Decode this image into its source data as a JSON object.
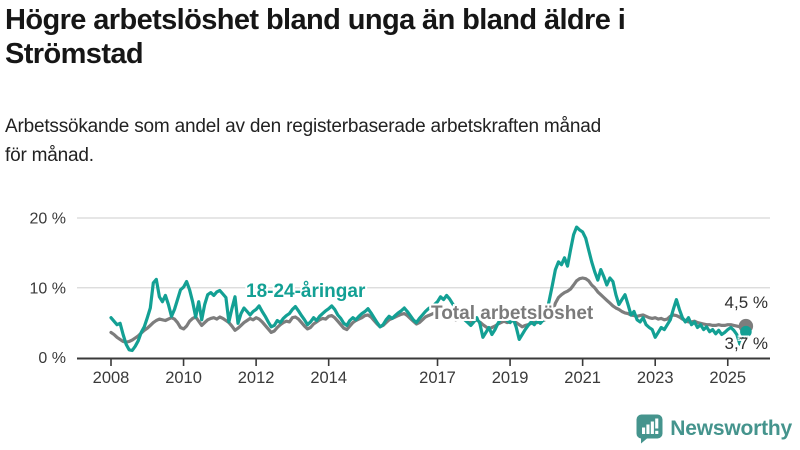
{
  "header": {
    "title": "Högre arbetslöshet bland unga än bland äldre i Strömstad",
    "subtitle_lines": [
      "Arbetssökande som andel av den registerbaserade arbetskraften månad",
      "för månad."
    ]
  },
  "footer": {
    "brand": "Newsworthy"
  },
  "colors": {
    "young": "#13a094",
    "total": "#7d7d7d",
    "axis": "#3a3a3a",
    "grid": "#d8d8d8",
    "value_label": "#2e2e2e",
    "brand": "#45948d",
    "title_text": "#161616"
  },
  "chart_data": {
    "type": "line",
    "title": "Högre arbetslöshet bland unga än bland äldre i Strömstad",
    "subtitle": "Arbetssökande som andel av den registerbaserade arbetskraften månad för månad.",
    "x_unit": "month",
    "x_start_year": 2008.0,
    "x_end_year": 2025.5,
    "x_step_years": 0.0833333,
    "ylim": [
      0,
      20
    ],
    "grid": "horizontal",
    "legend_position": "inline-labels",
    "y_axis": [
      {
        "value": 0,
        "label": "0 %"
      },
      {
        "value": 10,
        "label": "10 %"
      },
      {
        "value": 20,
        "label": "20 %"
      }
    ],
    "x_axis": [
      {
        "year": 2008,
        "label": "2008"
      },
      {
        "year": 2010,
        "label": "2010"
      },
      {
        "year": 2012,
        "label": "2012"
      },
      {
        "year": 2014,
        "label": "2014"
      },
      {
        "year": 2017,
        "label": "2017"
      },
      {
        "year": 2019,
        "label": "2019"
      },
      {
        "year": 2021,
        "label": "2021"
      },
      {
        "year": 2023,
        "label": "2023"
      },
      {
        "year": 2025,
        "label": "2025"
      }
    ],
    "series": [
      {
        "id": "total",
        "name": "Total arbetslöshet",
        "color": "#7d7d7d",
        "end_label": "4,5 %",
        "end_value": 4.5,
        "values": [
          3.6,
          3.3,
          2.9,
          2.6,
          2.3,
          2.2,
          2.3,
          2.5,
          2.8,
          3.1,
          3.5,
          3.9,
          4.2,
          4.6,
          5.0,
          5.3,
          5.5,
          5.4,
          5.3,
          5.5,
          5.7,
          5.5,
          5.0,
          4.3,
          4.1,
          4.5,
          5.2,
          5.6,
          5.8,
          5.2,
          4.6,
          5.0,
          5.4,
          5.6,
          5.7,
          5.5,
          5.8,
          5.6,
          5.3,
          5.0,
          4.5,
          3.9,
          4.2,
          4.6,
          5.0,
          5.3,
          5.6,
          5.4,
          5.7,
          5.5,
          5.1,
          4.6,
          4.1,
          3.6,
          3.8,
          4.3,
          4.7,
          5.0,
          5.2,
          5.1,
          5.7,
          5.8,
          5.5,
          5.0,
          4.5,
          4.1,
          4.3,
          4.8,
          5.1,
          5.4,
          5.6,
          5.5,
          5.9,
          6.0,
          5.7,
          5.2,
          4.7,
          4.2,
          4.0,
          4.5,
          5.0,
          5.3,
          5.5,
          5.7,
          6.0,
          6.1,
          5.8,
          5.3,
          4.8,
          4.4,
          4.6,
          5.0,
          5.4,
          5.6,
          5.8,
          6.0,
          6.2,
          6.3,
          6.0,
          5.6,
          5.2,
          4.8,
          5.0,
          5.4,
          5.8,
          6.0,
          6.2,
          6.4,
          6.6,
          6.9,
          6.7,
          6.4,
          6.0,
          5.7,
          5.4,
          5.6,
          5.8,
          5.6,
          5.3,
          5.0,
          5.2,
          5.4,
          5.1,
          4.7,
          4.4,
          4.1,
          4.3,
          4.5,
          4.8,
          5.0,
          5.2,
          5.0,
          5.1,
          5.3,
          5.0,
          4.7,
          4.4,
          4.6,
          4.7,
          4.9,
          5.1,
          5.0,
          5.2,
          5.3,
          5.5,
          5.8,
          6.5,
          7.8,
          8.6,
          9.0,
          9.3,
          9.5,
          9.8,
          10.4,
          11.0,
          11.3,
          11.4,
          11.3,
          11.0,
          10.4,
          10.0,
          9.4,
          9.0,
          8.6,
          8.2,
          7.8,
          7.4,
          7.1,
          6.9,
          6.6,
          6.4,
          6.3,
          6.1,
          6.0,
          5.9,
          6.0,
          6.1,
          5.9,
          5.7,
          5.6,
          5.7,
          5.5,
          5.6,
          5.4,
          5.5,
          5.9,
          6.1,
          6.0,
          5.8,
          5.5,
          5.3,
          5.1,
          5.1,
          5.2,
          5.0,
          4.9,
          4.8,
          4.7,
          4.7,
          4.6,
          4.6,
          4.7,
          4.6,
          4.6,
          4.7,
          4.7,
          4.6,
          4.5,
          4.4,
          4.4,
          4.5
        ]
      },
      {
        "id": "young",
        "name": "18-24-åringar",
        "color": "#13a094",
        "end_label": "3,7 %",
        "end_value": 3.7,
        "values": [
          5.7,
          5.2,
          4.7,
          4.9,
          3.3,
          1.9,
          1.1,
          1.0,
          1.6,
          2.4,
          3.6,
          4.4,
          5.7,
          7.1,
          10.7,
          11.2,
          8.7,
          8.0,
          8.9,
          7.6,
          5.9,
          6.9,
          8.3,
          9.7,
          10.1,
          10.9,
          9.7,
          8.0,
          5.8,
          8.0,
          5.4,
          7.6,
          9.0,
          9.3,
          8.9,
          9.4,
          9.6,
          9.1,
          8.6,
          5.1,
          7.0,
          8.7,
          4.9,
          6.3,
          7.1,
          6.6,
          6.1,
          6.6,
          6.9,
          7.4,
          6.6,
          5.9,
          5.1,
          4.4,
          4.6,
          5.3,
          5.0,
          5.6,
          6.0,
          6.3,
          6.9,
          7.3,
          6.7,
          6.0,
          5.4,
          4.7,
          5.1,
          5.7,
          5.3,
          5.9,
          6.3,
          6.7,
          7.0,
          7.4,
          6.9,
          6.1,
          5.6,
          4.9,
          4.6,
          5.3,
          5.7,
          5.4,
          5.9,
          6.3,
          6.6,
          7.0,
          6.4,
          5.7,
          5.0,
          4.4,
          4.7,
          5.4,
          5.9,
          5.6,
          6.0,
          6.4,
          6.7,
          7.1,
          6.6,
          6.0,
          5.4,
          5.0,
          5.6,
          6.1,
          6.6,
          7.0,
          7.3,
          7.6,
          8.0,
          8.7,
          8.3,
          8.9,
          8.4,
          7.7,
          7.0,
          6.4,
          5.9,
          5.4,
          5.0,
          4.6,
          5.1,
          5.7,
          4.9,
          2.9,
          3.6,
          4.3,
          3.3,
          4.0,
          4.9,
          5.6,
          6.0,
          5.3,
          5.0,
          5.6,
          4.4,
          2.6,
          3.3,
          4.0,
          4.6,
          5.1,
          4.7,
          5.3,
          4.9,
          5.4,
          6.3,
          8.3,
          10.4,
          12.6,
          13.7,
          13.3,
          14.3,
          13.1,
          15.4,
          17.6,
          18.7,
          18.3,
          18.0,
          17.1,
          15.4,
          13.7,
          12.3,
          11.1,
          12.6,
          11.6,
          10.4,
          11.4,
          10.9,
          9.0,
          7.6,
          8.3,
          9.0,
          7.6,
          6.1,
          6.6,
          5.4,
          5.1,
          5.7,
          4.7,
          4.3,
          4.0,
          2.9,
          3.6,
          4.3,
          4.0,
          4.7,
          5.4,
          6.9,
          8.3,
          6.9,
          5.7,
          5.1,
          5.7,
          4.7,
          5.1,
          4.3,
          4.7,
          4.0,
          4.4,
          3.7,
          4.0,
          3.4,
          3.9,
          3.3,
          3.6,
          4.0,
          4.3,
          3.9,
          3.3,
          1.9,
          2.6,
          3.7
        ]
      }
    ]
  }
}
